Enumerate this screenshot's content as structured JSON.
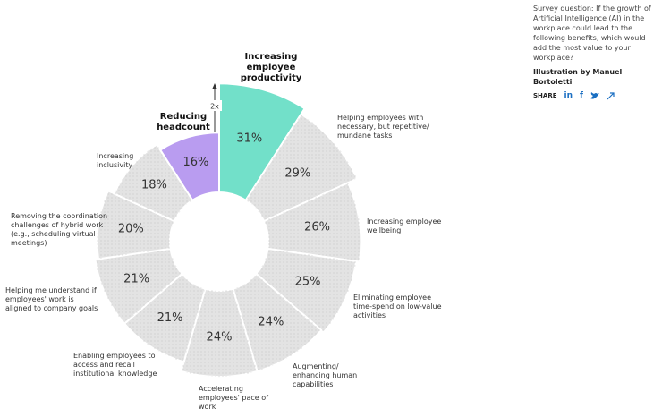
{
  "chart_data": {
    "type": "radial-bar",
    "categories": [
      "Increasing employee productivity",
      "Helping employees with necessary, but repetitive/ mundane tasks",
      "Increasing employee wellbeing",
      "Eliminating employee time-spend on low-value activities",
      "Augmenting/ enhancing human capabilities",
      "Accelerating employees' pace of work",
      "Enabling employees to access and recall institutional knowledge",
      "Helping me understand if employees' work is aligned to company goals",
      "Removing the coordination challenges of hybrid work (e.g., scheduling virtual meetings)",
      "Increasing inclusivity",
      "Reducing headcount"
    ],
    "values": [
      31,
      29,
      26,
      25,
      24,
      24,
      21,
      21,
      20,
      18,
      16
    ],
    "value_labels": [
      "31%",
      "29%",
      "26%",
      "25%",
      "24%",
      "24%",
      "21%",
      "21%",
      "20%",
      "18%",
      "16%"
    ],
    "colors": [
      "#72e0c9",
      "#e3e3e3",
      "#e3e3e3",
      "#e3e3e3",
      "#e3e3e3",
      "#e3e3e3",
      "#e3e3e3",
      "#e3e3e3",
      "#e3e3e3",
      "#e3e3e3",
      "#b99cf0"
    ],
    "annotation": "2x"
  },
  "sidebar": {
    "question": "Survey question: If the growth of Artificial Intelligence (AI) in the workplace could lead to the following benefits, which would add the most value to your workplace?",
    "credit": "Illustration by Manuel Bortoletti",
    "share": "SHARE",
    "icons": [
      "in",
      "f"
    ]
  }
}
